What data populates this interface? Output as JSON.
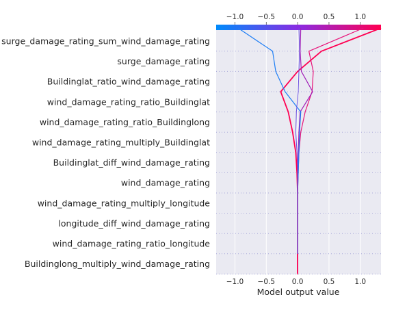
{
  "chart_data": {
    "type": "line",
    "subtype": "shap-decision-plot",
    "xlabel": "Model output value",
    "xlim": [
      -1.3,
      1.33
    ],
    "xticks": [
      -1.0,
      -0.5,
      0.0,
      0.5,
      1.0
    ],
    "xtick_labels": [
      "−1.0",
      "−0.5",
      "0.0",
      "0.5",
      "1.0"
    ],
    "base_value": 0.0,
    "grid": true,
    "features": [
      "surge_damage_rating_sum_wind_damage_rating",
      "surge_damage_rating",
      "Buildinglat_ratio_wind_damage_rating",
      "wind_damage_rating_ratio_Buildinglat",
      "wind_damage_rating_ratio_Buildinglong",
      "wind_damage_rating_multiply_Buildinglat",
      "Buildinglat_diff_wind_damage_rating",
      "wind_damage_rating",
      "wind_damage_rating_multiply_longitude",
      "longitude_diff_wind_damage_rating",
      "wind_damage_rating_ratio_longitude",
      "Buildinglong_multiply_wind_damage_rating"
    ],
    "colormap": {
      "low": "#008bfb",
      "mid": "#8a2be2",
      "high": "#ff0052"
    },
    "series": [
      {
        "color": "#ff0052",
        "width": 1.8,
        "values": [
          1.33,
          0.38,
          0.0,
          -0.27,
          -0.15,
          -0.08,
          -0.03,
          -0.01,
          0.0,
          0.0,
          0.0,
          0.0,
          0.0
        ]
      },
      {
        "color": "#e8147a",
        "width": 1.2,
        "values": [
          1.05,
          0.18,
          0.25,
          0.23,
          0.12,
          0.05,
          0.02,
          0.01,
          0.0,
          0.0,
          0.0,
          0.0,
          0.0
        ]
      },
      {
        "color": "#a11fb8",
        "width": 1.2,
        "values": [
          0.05,
          0.04,
          0.06,
          0.24,
          0.04,
          0.02,
          0.01,
          0.0,
          0.0,
          0.0,
          0.0,
          0.0,
          0.0
        ]
      },
      {
        "color": "#1e7ef5",
        "width": 1.2,
        "values": [
          -0.95,
          -0.4,
          -0.35,
          -0.2,
          0.05,
          0.03,
          0.02,
          0.01,
          0.0,
          0.0,
          0.0,
          0.0,
          0.0
        ]
      },
      {
        "color": "#6a4ee0",
        "width": 1.0,
        "values": [
          0.02,
          0.03,
          0.02,
          0.01,
          -0.02,
          -0.03,
          -0.01,
          0.0,
          0.0,
          0.0,
          0.0,
          0.0,
          0.0
        ]
      }
    ]
  }
}
